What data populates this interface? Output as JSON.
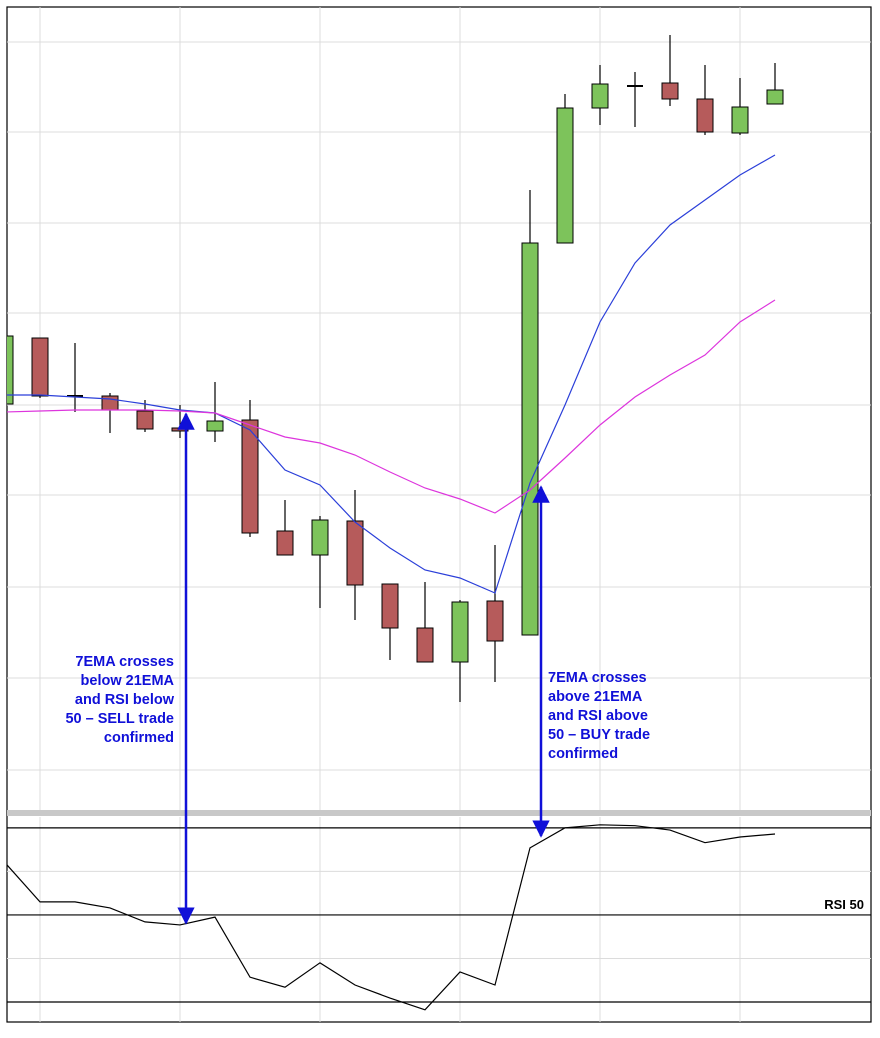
{
  "chart_data": [
    {
      "type": "candlestick",
      "open": [
        406,
        472,
        414,
        414,
        399,
        382,
        379,
        390,
        279,
        255,
        289,
        226,
        182,
        148,
        209,
        175,
        567,
        702,
        724,
        727,
        711,
        677,
        706
      ],
      "high": [
        474,
        472,
        467,
        417,
        410,
        405,
        428,
        410,
        310,
        294,
        320,
        226,
        228,
        210,
        265,
        620,
        716,
        745,
        738,
        775,
        745,
        732,
        747
      ],
      "low": [
        406,
        412,
        398,
        377,
        378,
        372,
        368,
        273,
        255,
        202,
        190,
        150,
        148,
        108,
        128,
        175,
        567,
        685,
        683,
        704,
        675,
        675,
        706
      ],
      "close": [
        474,
        414,
        413,
        400,
        381,
        379,
        389,
        277,
        255,
        290,
        225,
        182,
        148,
        208,
        169,
        567,
        702,
        726,
        723,
        711,
        678,
        703,
        720
      ],
      "up_color": "#7dc35b",
      "down_color": "#b65b5b",
      "series": [
        {
          "name": "7EMA",
          "color": "#2b3fd9",
          "values": [
            415,
            415,
            413,
            411,
            406,
            400,
            397,
            380,
            340,
            325,
            288,
            262,
            240,
            232,
            217,
            327,
            405,
            488,
            547,
            585,
            610,
            635,
            655
          ]
        },
        {
          "name": "21EMA",
          "color": "#dd35dd",
          "values": [
            398,
            399,
            400,
            400,
            400,
            399,
            397,
            385,
            373,
            367,
            355,
            338,
            322,
            311,
            297,
            320,
            352,
            385,
            413,
            435,
            455,
            488,
            510
          ]
        }
      ],
      "ylim": [
        0,
        803
      ],
      "yticks": [
        40,
        132,
        223,
        315,
        405,
        497,
        587,
        678,
        768
      ],
      "xticks": [
        1,
        5,
        9,
        13,
        17,
        21
      ],
      "grid": true,
      "annotations": [
        [
          "7EMA crosses",
          "below 21EMA",
          "and RSI below",
          "50 – SELL trade",
          "confirmed"
        ],
        [
          "7EMA crosses",
          "above 21EMA",
          "and RSI above",
          "50 – BUY trade",
          "confirmed"
        ]
      ]
    },
    {
      "type": "line",
      "label": "RSI 50",
      "series": [
        {
          "name": "RSI",
          "color": "#000000",
          "values": [
            62.0,
            53.0,
            53.0,
            51.6,
            48.4,
            47.7,
            49.5,
            35.7,
            33.4,
            39.0,
            33.9,
            30.9,
            28.2,
            36.9,
            33.9,
            65.4,
            70.0,
            70.7,
            70.5,
            69.5,
            66.6,
            67.9,
            68.6
          ]
        }
      ],
      "ylim": [
        25.4,
        72.5
      ],
      "levels": [
        30,
        40,
        50,
        60,
        70
      ]
    }
  ]
}
